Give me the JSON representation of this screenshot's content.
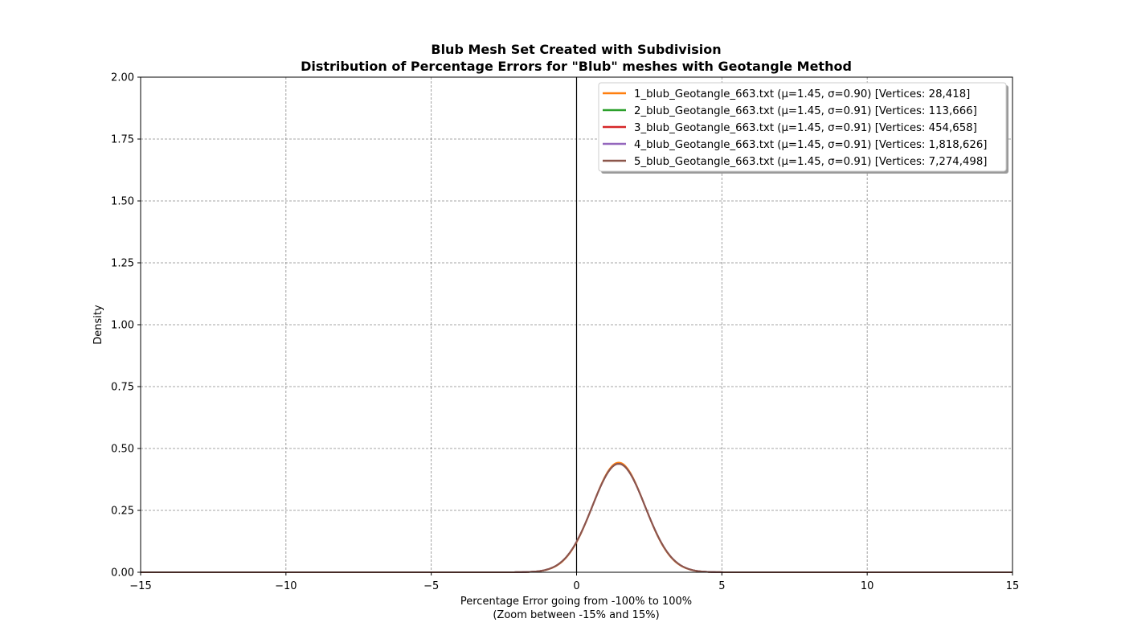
{
  "chart_data": {
    "type": "line",
    "title": "Blub Mesh Set Created with Subdivision",
    "subtitle": "Distribution of Percentage Errors for \"Blub\" meshes with Geotangle Method",
    "xlabel": "Percentage Error going from -100% to 100%",
    "xlabel2": "(Zoom between -15% and 15%)",
    "ylabel": "Density",
    "xlim": [
      -15,
      15
    ],
    "ylim": [
      0,
      2
    ],
    "xticks": [
      -15,
      -10,
      -5,
      0,
      5,
      10,
      15
    ],
    "xtick_labels": [
      "−15",
      "−10",
      "−5",
      "0",
      "5",
      "10",
      "15"
    ],
    "yticks": [
      0,
      0.25,
      0.5,
      0.75,
      1.0,
      1.25,
      1.5,
      1.75,
      2.0
    ],
    "ytick_labels": [
      "0.00",
      "0.25",
      "0.50",
      "0.75",
      "1.00",
      "1.25",
      "1.50",
      "1.75",
      "2.00"
    ],
    "grid": true,
    "legend_position": "top-right",
    "vertical_reference_line_x": 0,
    "series": [
      {
        "name": "1_blub_Geotangle_663.txt (μ=1.45, σ=0.90) [Vertices: 28,418]",
        "mu": 1.45,
        "sigma": 0.9,
        "color": "#ff7f0e"
      },
      {
        "name": "2_blub_Geotangle_663.txt (μ=1.45, σ=0.91) [Vertices: 113,666]",
        "mu": 1.45,
        "sigma": 0.91,
        "color": "#2ca02c"
      },
      {
        "name": "3_blub_Geotangle_663.txt (μ=1.45, σ=0.91) [Vertices: 454,658]",
        "mu": 1.45,
        "sigma": 0.91,
        "color": "#d62728"
      },
      {
        "name": "4_blub_Geotangle_663.txt (μ=1.45, σ=0.91) [Vertices: 1,818,626]",
        "mu": 1.45,
        "sigma": 0.91,
        "color": "#9467bd"
      },
      {
        "name": "5_blub_Geotangle_663.txt (μ=1.45, σ=0.91) [Vertices: 7,274,498]",
        "mu": 1.45,
        "sigma": 0.91,
        "color": "#8c564b"
      }
    ]
  }
}
